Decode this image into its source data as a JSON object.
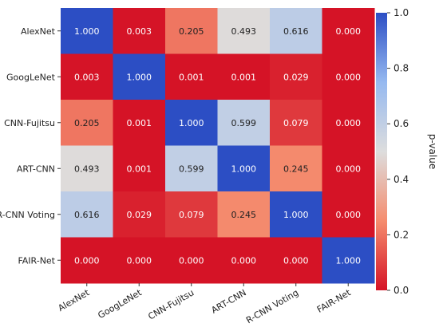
{
  "chart_data": {
    "type": "heatmap",
    "title": "",
    "rows": [
      "AlexNet",
      "GoogLeNet",
      "CNN-Fujitsu",
      "ART-CNN",
      "R-CNN Voting",
      "FAIR-Net"
    ],
    "columns": [
      "AlexNet",
      "GoogLeNet",
      "CNN-Fujitsu",
      "ART-CNN",
      "R-CNN Voting",
      "FAIR-Net"
    ],
    "values": [
      [
        1.0,
        0.003,
        0.205,
        0.493,
        0.616,
        0.0
      ],
      [
        0.003,
        1.0,
        0.001,
        0.001,
        0.029,
        0.0
      ],
      [
        0.205,
        0.001,
        1.0,
        0.599,
        0.079,
        0.0
      ],
      [
        0.493,
        0.001,
        0.599,
        1.0,
        0.245,
        0.0
      ],
      [
        0.616,
        0.029,
        0.079,
        0.245,
        1.0,
        0.0
      ],
      [
        0.0,
        0.0,
        0.0,
        0.0,
        0.0,
        1.0
      ]
    ],
    "value_format_decimals": 3,
    "colorbar": {
      "label": "p-value",
      "range": [
        0.0,
        1.0
      ],
      "ticks": [
        "0.0",
        "0.2",
        "0.4",
        "0.6",
        "0.8",
        "1.0"
      ],
      "colormap": "coolwarm_r",
      "low_color": "#d7191c",
      "mid_color": "#dddddd",
      "high_color": "#2c4ec4"
    },
    "x_tick_rotation": "30deg",
    "grid": false
  }
}
